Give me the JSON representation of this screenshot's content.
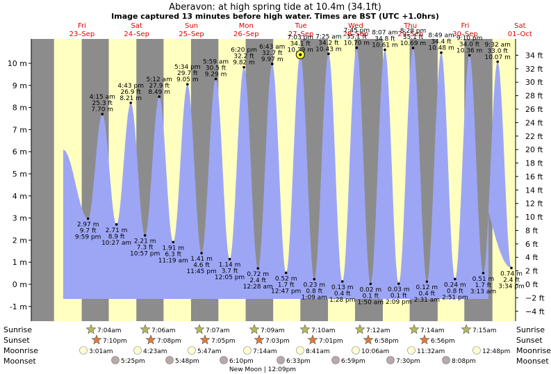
{
  "title": "Aberavon: at high  spring tide at 10.4m (34.1ft)",
  "subtitle": "Image captured 13 minutes before high water. Times are BST (UTC +1.0hrs)",
  "current_marker": {
    "time": "7:03 pm",
    "height_ft": "34.1 ft",
    "height_m": "10.39 m"
  },
  "days": [
    {
      "name": "Fri",
      "date": "23–Sep"
    },
    {
      "name": "Sat",
      "date": "24–Sep"
    },
    {
      "name": "Sun",
      "date": "25–Sep"
    },
    {
      "name": "Mon",
      "date": "26–Sep"
    },
    {
      "name": "Tue",
      "date": "27–Sep"
    },
    {
      "name": "Wed",
      "date": "28–Sep"
    },
    {
      "name": "Thu",
      "date": "29–Sep"
    },
    {
      "name": "Fri",
      "date": "30–Sep"
    },
    {
      "name": "Sat",
      "date": "01–Oct"
    }
  ],
  "rows": {
    "sunrise": "Sunrise",
    "sunset": "Sunset",
    "moonrise": "Moonrise",
    "moonset": "Moonset"
  },
  "sunrise": [
    "7:04am",
    "7:06am",
    "7:07am",
    "7:09am",
    "7:10am",
    "7:12am",
    "7:14am",
    "7:15am"
  ],
  "sunset": [
    "7:10pm",
    "7:08pm",
    "7:05pm",
    "7:03pm",
    "7:01pm",
    "6:58pm",
    "6:56pm"
  ],
  "moonrise": [
    "3:01am",
    "4:23am",
    "5:47am",
    "7:14am",
    "8:41am",
    "10:06am",
    "11:32am",
    "12:48pm"
  ],
  "moonset": [
    "5:25pm",
    "5:48pm",
    "6:10pm",
    "6:33pm",
    "6:59pm",
    "7:30pm",
    "8:08pm"
  ],
  "new_moon": "New Moon | 12:09pm",
  "colors": {
    "water": "#9da6f5",
    "night": "#8c8c8c",
    "day": "#ffffc0",
    "date": "#dd0000",
    "sun": "#b5b85a",
    "sunset_star": "#e07a3a",
    "moonrise_fill": "#ffffd0",
    "moonset_fill": "#b8aaa8"
  },
  "chart_data": {
    "type": "area",
    "title": "Aberavon: at high  spring tide at 10.4m (34.1ft)",
    "ylabel_left": "m",
    "ylabel_right": "ft",
    "ylim_m": [
      -1.3,
      10.8
    ],
    "yticks_m": [
      "-1 m",
      "0 m",
      "1 m",
      "2 m",
      "3 m",
      "4 m",
      "5 m",
      "6 m",
      "7 m",
      "8 m",
      "9 m",
      "10 m"
    ],
    "yticks_ft": [
      "−4 ft",
      "−2 ft",
      "0 ft",
      "2 ft",
      "4 ft",
      "6 ft",
      "8 ft",
      "10 ft",
      "12 ft",
      "14 ft",
      "16 ft",
      "18 ft",
      "20 ft",
      "22 ft",
      "24 ft",
      "26 ft",
      "28 ft",
      "30 ft",
      "32 ft",
      "34 ft"
    ],
    "tides": [
      {
        "type": "low",
        "day": 0,
        "hour": 21.98,
        "time": "9:59 pm",
        "m": 2.97,
        "m_label": "2.97 m",
        "ft_label": "9.7 ft"
      },
      {
        "type": "high",
        "day": 1,
        "hour": 4.25,
        "time": "4:15 am",
        "m": 7.7,
        "m_label": "7.70 m",
        "ft_label": "25.3 ft"
      },
      {
        "type": "low",
        "day": 1,
        "hour": 10.45,
        "time": "10:27 am",
        "m": 2.71,
        "m_label": "2.71 m",
        "ft_label": "8.9 ft"
      },
      {
        "type": "high",
        "day": 1,
        "hour": 16.72,
        "time": "4:43 pm",
        "m": 8.21,
        "m_label": "8.21 m",
        "ft_label": "26.9 ft"
      },
      {
        "type": "low",
        "day": 1,
        "hour": 22.95,
        "time": "10:57 pm",
        "m": 2.21,
        "m_label": "2.21 m",
        "ft_label": "7.3 ft"
      },
      {
        "type": "high",
        "day": 2,
        "hour": 5.2,
        "time": "5:12 am",
        "m": 8.49,
        "m_label": "8.49 m",
        "ft_label": "27.9 ft"
      },
      {
        "type": "low",
        "day": 2,
        "hour": 11.32,
        "time": "11:19 am",
        "m": 1.91,
        "m_label": "1.91 m",
        "ft_label": "6.3 ft"
      },
      {
        "type": "high",
        "day": 2,
        "hour": 17.57,
        "time": "5:34 pm",
        "m": 9.05,
        "m_label": "9.05 m",
        "ft_label": "29.7 ft"
      },
      {
        "type": "low",
        "day": 2,
        "hour": 23.75,
        "time": "11:45 pm",
        "m": 1.41,
        "m_label": "1.41 m",
        "ft_label": "4.6 ft"
      },
      {
        "type": "high",
        "day": 3,
        "hour": 5.98,
        "time": "5:59 am",
        "m": 9.29,
        "m_label": "9.29 m",
        "ft_label": "30.5 ft"
      },
      {
        "type": "low",
        "day": 3,
        "hour": 12.08,
        "time": "12:05 pm",
        "m": 1.14,
        "m_label": "1.14 m",
        "ft_label": "3.7 ft"
      },
      {
        "type": "high",
        "day": 3,
        "hour": 18.33,
        "time": "6:20 pm",
        "m": 9.82,
        "m_label": "9.82 m",
        "ft_label": "32.2 ft"
      },
      {
        "type": "low",
        "day": 4,
        "hour": 0.47,
        "time": "12:28 am",
        "m": 0.72,
        "m_label": "0.72 m",
        "ft_label": "2.4 ft"
      },
      {
        "type": "high",
        "day": 4,
        "hour": 6.72,
        "time": "6:43 am",
        "m": 9.97,
        "m_label": "9.97 m",
        "ft_label": "32.7 ft"
      },
      {
        "type": "low",
        "day": 4,
        "hour": 12.78,
        "time": "12:47 pm",
        "m": 0.52,
        "m_label": "0.52 m",
        "ft_label": "1.7 ft"
      },
      {
        "type": "high",
        "day": 4,
        "hour": 19.05,
        "time": "7:03 pm",
        "m": 10.39,
        "m_label": "10.39 m",
        "ft_label": "34.1 ft"
      },
      {
        "type": "low",
        "day": 5,
        "hour": 1.15,
        "time": "1:09 am",
        "m": 0.23,
        "m_label": "0.23 m",
        "ft_label": "0.8 ft"
      },
      {
        "type": "high",
        "day": 5,
        "hour": 7.42,
        "time": "7:25 am",
        "m": 10.43,
        "m_label": "10.43 m",
        "ft_label": "34.2 ft"
      },
      {
        "type": "low",
        "day": 5,
        "hour": 13.47,
        "time": "1:28 pm",
        "m": 0.13,
        "m_label": "0.13 m",
        "ft_label": "0.4 ft"
      },
      {
        "type": "high",
        "day": 5,
        "hour": 19.75,
        "time": "7:45 pm",
        "m": 10.7,
        "m_label": "10.70 m",
        "ft_label": "35.1 ft"
      },
      {
        "type": "low",
        "day": 6,
        "hour": 1.83,
        "time": "1:50 am",
        "m": 0.02,
        "m_label": "0.02 m",
        "ft_label": "0.1 ft"
      },
      {
        "type": "high",
        "day": 6,
        "hour": 8.12,
        "time": "8:07 am",
        "m": 10.61,
        "m_label": "10.61 m",
        "ft_label": "34.8 ft"
      },
      {
        "type": "low",
        "day": 6,
        "hour": 14.15,
        "time": "2:09 pm",
        "m": 0.03,
        "m_label": "0.03 m",
        "ft_label": "0.1 ft"
      },
      {
        "type": "high",
        "day": 6,
        "hour": 20.47,
        "time": "8:28 pm",
        "m": 10.69,
        "m_label": "10.69 m",
        "ft_label": "35.1 ft"
      },
      {
        "type": "low",
        "day": 7,
        "hour": 2.52,
        "time": "2:31 am",
        "m": 0.12,
        "m_label": "0.12 m",
        "ft_label": "0.4 ft"
      },
      {
        "type": "high",
        "day": 7,
        "hour": 8.82,
        "time": "8:49 am",
        "m": 10.48,
        "m_label": "10.48 m",
        "ft_label": "34.4 ft"
      },
      {
        "type": "low",
        "day": 7,
        "hour": 14.85,
        "time": "2:51 pm",
        "m": 0.24,
        "m_label": "0.24 m",
        "ft_label": "0.8 ft"
      },
      {
        "type": "high",
        "day": 7,
        "hour": 21.17,
        "time": "9:10 pm",
        "m": 10.36,
        "m_label": "10.36 m",
        "ft_label": "34.0 ft"
      },
      {
        "type": "low",
        "day": 8,
        "hour": 3.22,
        "time": "3:13 am",
        "m": 0.51,
        "m_label": "0.51 m",
        "ft_label": "1.7 ft"
      },
      {
        "type": "high",
        "day": 8,
        "hour": 9.53,
        "time": "9:32 am",
        "m": 10.07,
        "m_label": "10.07 m",
        "ft_label": "33.0 ft"
      },
      {
        "type": "low",
        "day": 8,
        "hour": 15.57,
        "time": "3:34 pm",
        "m": 0.74,
        "m_label": "0.74 m",
        "ft_label": "2.4 ft"
      }
    ],
    "daylight": [
      {
        "day": 0,
        "rise": 7.07,
        "set": 19.22
      },
      {
        "day": 1,
        "rise": 7.07,
        "set": 19.17
      },
      {
        "day": 2,
        "rise": 7.1,
        "set": 19.13
      },
      {
        "day": 3,
        "rise": 7.12,
        "set": 19.08
      },
      {
        "day": 4,
        "rise": 7.15,
        "set": 19.05
      },
      {
        "day": 5,
        "rise": 7.17,
        "set": 19.02
      },
      {
        "day": 6,
        "rise": 7.2,
        "set": 18.97
      },
      {
        "day": 7,
        "rise": 7.23,
        "set": 18.93
      },
      {
        "day": 8,
        "rise": 7.25,
        "set": 18.9
      }
    ]
  }
}
